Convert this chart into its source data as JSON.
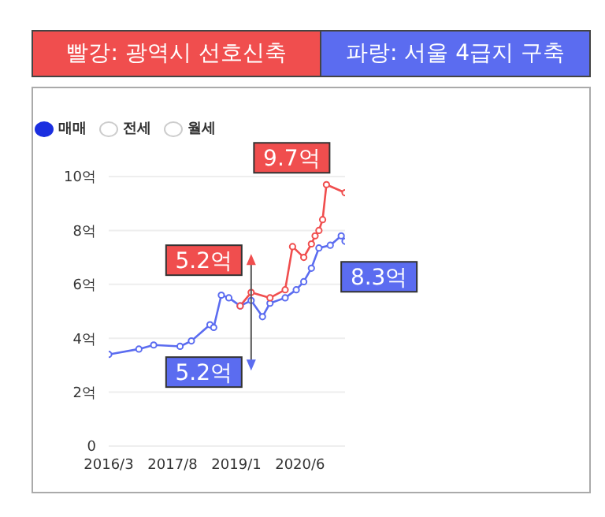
{
  "chart_data": {
    "type": "line",
    "annotations": [
      "매매",
      "전세",
      "월세",
      {
        "text": "5.2억",
        "x": "2019-05",
        "y": 5.2
      },
      {
        "text": "5.2억",
        "x": "2019-05",
        "y": 5.2
      },
      {
        "text": "9.7억",
        "x": "2021-01",
        "y": 9.7
      },
      {
        "text": "8.3억",
        "x": "2021-05",
        "y": 7.8
      }
    ],
    "xlim": [
      "2016-03",
      "2021-06"
    ],
    "xticks": [
      {
        "value": "2016-03",
        "label": "2016/3"
      },
      {
        "value": "2017-08",
        "label": "2017/8"
      },
      {
        "value": "2019-01",
        "label": "2019/1"
      },
      {
        "value": "2020-06",
        "label": "2020/6"
      }
    ],
    "ylim": [
      0,
      10
    ],
    "yticks": [
      0,
      {
        "value": 2,
        "label": "2억"
      },
      {
        "value": 4,
        "label": "4억"
      },
      {
        "value": 6,
        "label": "6억"
      },
      {
        "value": 8,
        "label": "8억"
      },
      {
        "value": 10,
        "label": "10억"
      }
    ],
    "grid": "y",
    "legend": "top",
    "marker": "circle",
    "line_style": "solid",
    "series": [
      {
        "name": "빨강: 광역시 선호신축",
        "color": "#f04e4e",
        "x": [
          "2019-02",
          "2019-05",
          "2019-10",
          "2020-02",
          "2020-04",
          "2020-07",
          "2020-09",
          "2020-10",
          "2020-11",
          "2020-12",
          "2021-01",
          "2021-06"
        ],
        "values": [
          5.2,
          5.7,
          5.5,
          5.8,
          7.4,
          7.0,
          7.5,
          7.8,
          8.0,
          8.4,
          9.7,
          9.4
        ]
      },
      {
        "name": "파랑: 서울 4급지 구축",
        "color": "#5b6cf0",
        "x": [
          "2016-03",
          "2016-11",
          "2017-03",
          "2017-10",
          "2018-01",
          "2018-06",
          "2018-07",
          "2018-09",
          "2018-11",
          "2019-02",
          "2019-05",
          "2019-08",
          "2019-10",
          "2020-02",
          "2020-05",
          "2020-07",
          "2020-09",
          "2020-11",
          "2021-02",
          "2021-05",
          "2021-06"
        ],
        "values": [
          3.4,
          3.6,
          3.75,
          3.7,
          3.9,
          4.5,
          4.4,
          5.6,
          5.5,
          5.2,
          5.4,
          4.8,
          5.3,
          5.5,
          5.8,
          6.1,
          6.6,
          7.35,
          7.45,
          7.8,
          7.6
        ]
      }
    ]
  }
}
